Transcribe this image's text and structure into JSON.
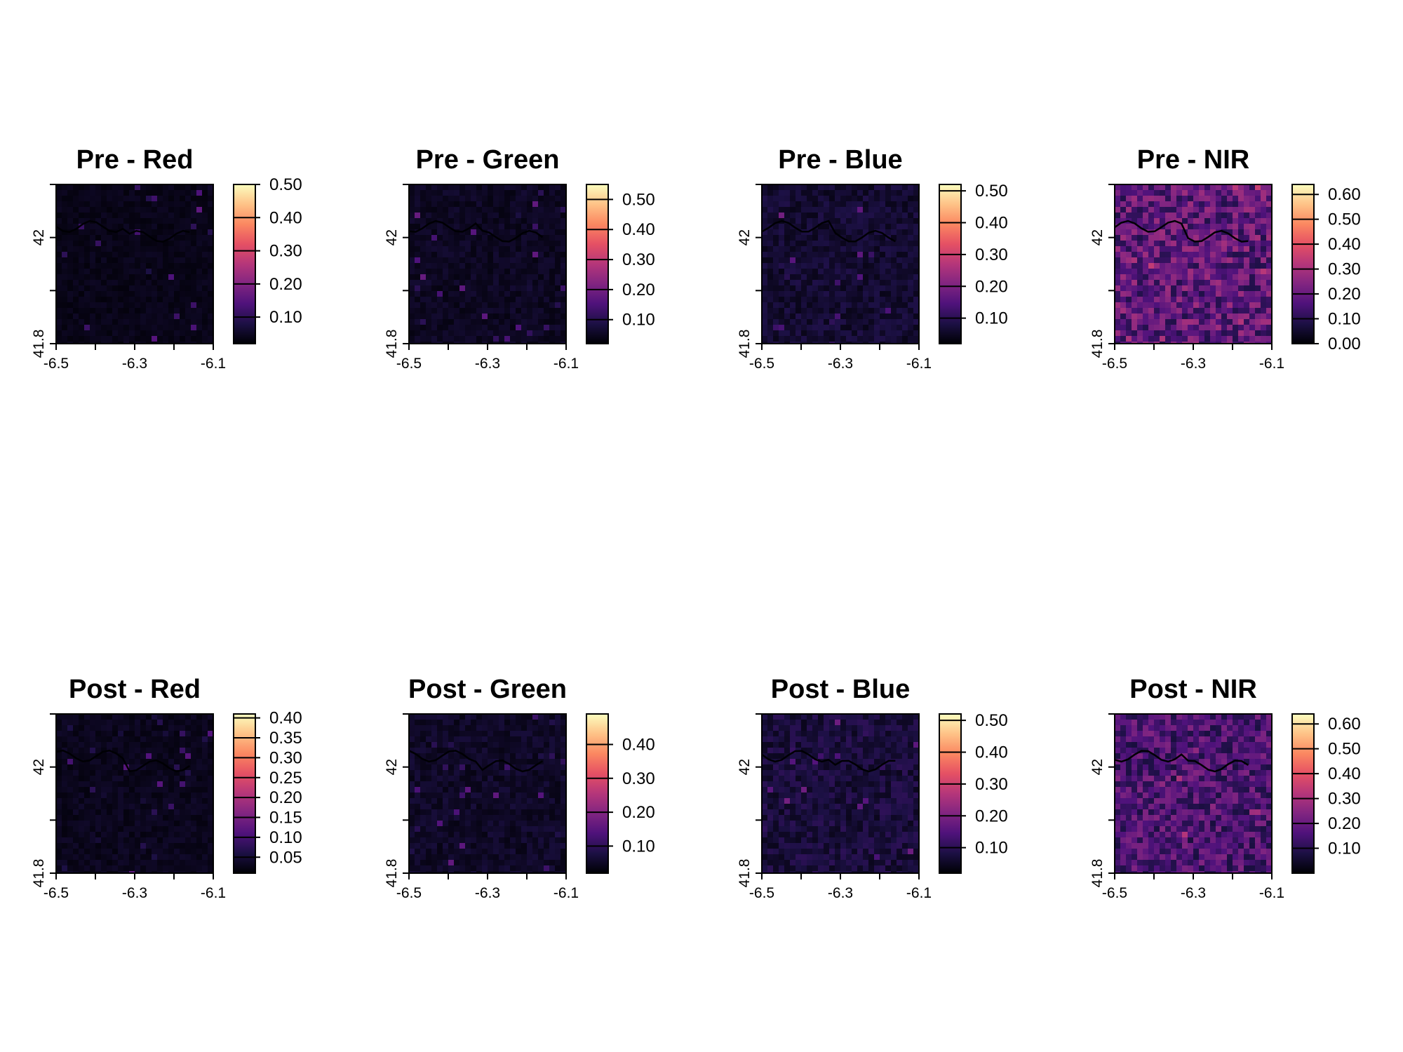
{
  "colormap": [
    "#000004",
    "#1c1044",
    "#4f127b",
    "#812581",
    "#b5367a",
    "#e55064",
    "#fb8761",
    "#fec287",
    "#fcfdbf"
  ],
  "base_color": "#1a0b33",
  "chart_data": [
    {
      "type": "heatmap",
      "title": "Pre - Red",
      "x_ticks": [
        "-6.5",
        "-6.3",
        "-6.1"
      ],
      "y_ticks": [
        "41.8",
        "42"
      ],
      "xlim": [
        -6.5,
        -6.1
      ],
      "ylim": [
        41.8,
        42.1
      ],
      "legend_ticks": [
        "0.10",
        "0.20",
        "0.30",
        "0.40",
        "0.50"
      ],
      "legend_range": [
        0.02,
        0.5
      ],
      "level": 0.04
    },
    {
      "type": "heatmap",
      "title": "Pre - Green",
      "x_ticks": [
        "-6.5",
        "-6.3",
        "-6.1"
      ],
      "y_ticks": [
        "41.8",
        "42"
      ],
      "xlim": [
        -6.5,
        -6.1
      ],
      "ylim": [
        41.8,
        42.1
      ],
      "legend_ticks": [
        "0.10",
        "0.20",
        "0.30",
        "0.40",
        "0.50"
      ],
      "legend_range": [
        0.02,
        0.55
      ],
      "level": 0.06
    },
    {
      "type": "heatmap",
      "title": "Pre - Blue",
      "x_ticks": [
        "-6.5",
        "-6.3",
        "-6.1"
      ],
      "y_ticks": [
        "41.8",
        "42"
      ],
      "xlim": [
        -6.5,
        -6.1
      ],
      "ylim": [
        41.8,
        42.1
      ],
      "legend_ticks": [
        "0.10",
        "0.20",
        "0.30",
        "0.40",
        "0.50"
      ],
      "legend_range": [
        0.02,
        0.52
      ],
      "level": 0.09
    },
    {
      "type": "heatmap",
      "title": "Pre - NIR",
      "x_ticks": [
        "-6.5",
        "-6.3",
        "-6.1"
      ],
      "y_ticks": [
        "41.8",
        "42"
      ],
      "xlim": [
        -6.5,
        -6.1
      ],
      "ylim": [
        41.8,
        42.1
      ],
      "legend_ticks": [
        "0.00",
        "0.10",
        "0.20",
        "0.30",
        "0.40",
        "0.50",
        "0.60"
      ],
      "legend_range": [
        0.0,
        0.64
      ],
      "level": 0.3
    },
    {
      "type": "heatmap",
      "title": "Post - Red",
      "x_ticks": [
        "-6.5",
        "-6.3",
        "-6.1"
      ],
      "y_ticks": [
        "41.8",
        "42"
      ],
      "xlim": [
        -6.5,
        -6.1
      ],
      "ylim": [
        41.8,
        42.1
      ],
      "legend_ticks": [
        "0.05",
        "0.10",
        "0.15",
        "0.20",
        "0.25",
        "0.30",
        "0.35",
        "0.40"
      ],
      "legend_range": [
        0.01,
        0.41
      ],
      "level": 0.05
    },
    {
      "type": "heatmap",
      "title": "Post - Green",
      "x_ticks": [
        "-6.5",
        "-6.3",
        "-6.1"
      ],
      "y_ticks": [
        "41.8",
        "42"
      ],
      "xlim": [
        -6.5,
        -6.1
      ],
      "ylim": [
        41.8,
        42.1
      ],
      "legend_ticks": [
        "0.10",
        "0.20",
        "0.30",
        "0.40"
      ],
      "legend_range": [
        0.02,
        0.49
      ],
      "level": 0.07
    },
    {
      "type": "heatmap",
      "title": "Post - Blue",
      "x_ticks": [
        "-6.5",
        "-6.3",
        "-6.1"
      ],
      "y_ticks": [
        "41.8",
        "42"
      ],
      "xlim": [
        -6.5,
        -6.1
      ],
      "ylim": [
        41.8,
        42.1
      ],
      "legend_ticks": [
        "0.10",
        "0.20",
        "0.30",
        "0.40",
        "0.50"
      ],
      "legend_range": [
        0.02,
        0.52
      ],
      "level": 0.11
    },
    {
      "type": "heatmap",
      "title": "Post - NIR",
      "x_ticks": [
        "-6.5",
        "-6.3",
        "-6.1"
      ],
      "y_ticks": [
        "41.8",
        "42"
      ],
      "xlim": [
        -6.5,
        -6.1
      ],
      "ylim": [
        41.8,
        42.1
      ],
      "legend_ticks": [
        "0.10",
        "0.20",
        "0.30",
        "0.40",
        "0.50",
        "0.60"
      ],
      "legend_range": [
        0.0,
        0.64
      ],
      "level": 0.25
    }
  ]
}
